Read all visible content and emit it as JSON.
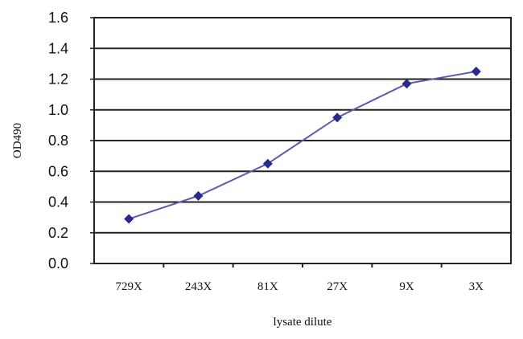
{
  "chart_data": {
    "type": "line",
    "title": "",
    "xlabel": "lysate dilute",
    "ylabel": "OD490",
    "categories": [
      "729X",
      "243X",
      "81X",
      "27X",
      "9X",
      "3X"
    ],
    "series": [
      {
        "values": [
          0.29,
          0.44,
          0.65,
          0.95,
          1.17,
          1.25
        ],
        "color": "#2a2a8c",
        "marker": "diamond"
      }
    ],
    "ylim": [
      0,
      1.6
    ],
    "yticks": [
      "0.0",
      "0.2",
      "0.4",
      "0.6",
      "0.8",
      "1.0",
      "1.2",
      "1.4",
      "1.6"
    ],
    "grid": true,
    "legend": "none"
  }
}
